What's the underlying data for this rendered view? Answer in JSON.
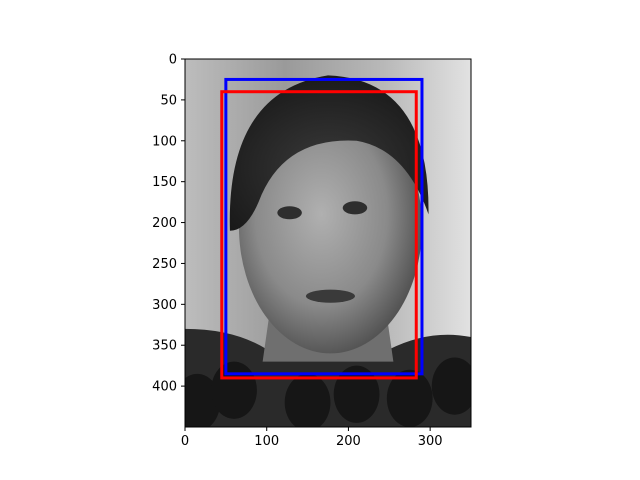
{
  "chart_data": {
    "type": "image",
    "title": "",
    "xlabel": "",
    "ylabel": "",
    "xlim": [
      0,
      350
    ],
    "ylim": [
      450,
      0
    ],
    "y_inverted": true,
    "xticks": [
      0,
      100,
      200,
      300
    ],
    "yticks": [
      0,
      50,
      100,
      150,
      200,
      250,
      300,
      350,
      400
    ],
    "grid": false,
    "legend": "none",
    "image_content": "grayscale face photo",
    "boxes": [
      {
        "color": "#0000ff",
        "x0": 50,
        "y0": 25,
        "x1": 290,
        "y1": 385
      },
      {
        "color": "#ff0000",
        "x0": 45,
        "y0": 40,
        "x1": 283,
        "y1": 390
      }
    ]
  }
}
